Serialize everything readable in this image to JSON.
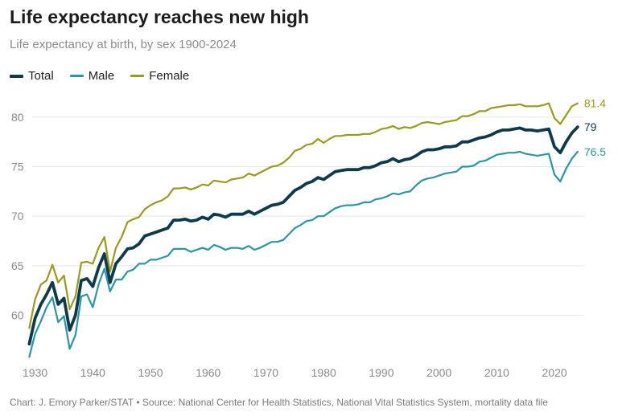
{
  "title": "Life expectancy reaches new high",
  "subtitle": "Life expectancy at birth, by sex 1900-2024",
  "source": "Chart: J. Emory Parker/STAT • Source: National Center for Health Statistics, National Vital Statistics System, mortality data file",
  "colors": {
    "total": "#0d3b4c",
    "male": "#2a97a8",
    "female": "#9a9a1c",
    "grid": "#e6e6e6",
    "tick": "#8a8a8a"
  },
  "chart_data": {
    "type": "line",
    "title": "Life expectancy reaches new high",
    "xlim": [
      1929.5,
      2025
    ],
    "ylim": [
      55.5,
      82.5
    ],
    "x_ticks": [
      1930,
      1940,
      1950,
      1960,
      1970,
      1980,
      1990,
      2000,
      2010,
      2020
    ],
    "y_ticks": [
      60,
      65,
      70,
      75,
      80
    ],
    "grid": "horizontal",
    "legend": "top-left",
    "x": [
      1929,
      1930,
      1931,
      1932,
      1933,
      1934,
      1935,
      1936,
      1937,
      1938,
      1939,
      1940,
      1941,
      1942,
      1943,
      1944,
      1945,
      1946,
      1947,
      1948,
      1949,
      1950,
      1951,
      1952,
      1953,
      1954,
      1955,
      1956,
      1957,
      1958,
      1959,
      1960,
      1961,
      1962,
      1963,
      1964,
      1965,
      1966,
      1967,
      1968,
      1969,
      1970,
      1971,
      1972,
      1973,
      1974,
      1975,
      1976,
      1977,
      1978,
      1979,
      1980,
      1981,
      1982,
      1983,
      1984,
      1985,
      1986,
      1987,
      1988,
      1989,
      1990,
      1991,
      1992,
      1993,
      1994,
      1995,
      1996,
      1997,
      1998,
      1999,
      2000,
      2001,
      2002,
      2003,
      2004,
      2005,
      2006,
      2007,
      2008,
      2009,
      2010,
      2011,
      2012,
      2013,
      2014,
      2015,
      2016,
      2017,
      2018,
      2019,
      2020,
      2021,
      2022,
      2023,
      2024
    ],
    "series": [
      {
        "name": "Total",
        "end_label": "79",
        "values": [
          57.1,
          59.7,
          61.1,
          62.1,
          63.3,
          61.1,
          61.7,
          58.5,
          60.0,
          63.5,
          63.7,
          62.9,
          64.8,
          66.2,
          63.3,
          65.2,
          65.9,
          66.7,
          66.8,
          67.2,
          68.0,
          68.2,
          68.4,
          68.6,
          68.8,
          69.6,
          69.6,
          69.7,
          69.5,
          69.6,
          69.9,
          69.7,
          70.2,
          70.1,
          69.9,
          70.2,
          70.2,
          70.2,
          70.5,
          70.2,
          70.5,
          70.8,
          71.1,
          71.2,
          71.4,
          72.0,
          72.6,
          72.9,
          73.3,
          73.5,
          73.9,
          73.7,
          74.1,
          74.5,
          74.6,
          74.7,
          74.7,
          74.7,
          74.9,
          74.9,
          75.1,
          75.4,
          75.5,
          75.8,
          75.5,
          75.7,
          75.8,
          76.1,
          76.5,
          76.7,
          76.7,
          76.8,
          77.0,
          77.0,
          77.1,
          77.5,
          77.5,
          77.7,
          77.9,
          78.0,
          78.2,
          78.5,
          78.7,
          78.7,
          78.8,
          78.9,
          78.7,
          78.7,
          78.6,
          78.7,
          78.8,
          77.0,
          76.4,
          77.5,
          78.4,
          79.0
        ]
      },
      {
        "name": "Male",
        "end_label": "76.5",
        "values": [
          55.8,
          58.1,
          59.4,
          60.8,
          61.8,
          59.3,
          59.9,
          56.6,
          58.0,
          61.9,
          62.1,
          60.8,
          63.1,
          64.7,
          62.4,
          63.6,
          63.6,
          64.4,
          64.6,
          65.2,
          65.2,
          65.6,
          65.6,
          65.8,
          66.0,
          66.7,
          66.7,
          66.7,
          66.4,
          66.6,
          66.8,
          66.6,
          67.1,
          66.9,
          66.6,
          66.8,
          66.8,
          66.7,
          67.0,
          66.6,
          66.8,
          67.1,
          67.4,
          67.4,
          67.6,
          68.2,
          68.8,
          69.1,
          69.5,
          69.6,
          70.0,
          70.0,
          70.4,
          70.8,
          71.0,
          71.1,
          71.1,
          71.2,
          71.4,
          71.4,
          71.7,
          71.8,
          72.0,
          72.3,
          72.2,
          72.4,
          72.5,
          73.1,
          73.6,
          73.8,
          73.9,
          74.1,
          74.3,
          74.4,
          74.5,
          75.0,
          75.0,
          75.1,
          75.5,
          75.6,
          75.9,
          76.2,
          76.3,
          76.4,
          76.4,
          76.5,
          76.3,
          76.2,
          76.1,
          76.2,
          76.3,
          74.2,
          73.5,
          74.8,
          75.8,
          76.5
        ]
      },
      {
        "name": "Female",
        "end_label": "81.4",
        "values": [
          58.7,
          61.6,
          63.1,
          63.5,
          65.1,
          63.3,
          64.0,
          60.6,
          61.9,
          65.3,
          65.4,
          65.2,
          66.8,
          67.9,
          64.4,
          66.8,
          67.9,
          69.4,
          69.7,
          69.9,
          70.7,
          71.1,
          71.4,
          71.6,
          72.0,
          72.8,
          72.8,
          72.9,
          72.7,
          72.9,
          73.2,
          73.1,
          73.6,
          73.5,
          73.4,
          73.7,
          73.8,
          73.9,
          74.3,
          74.1,
          74.4,
          74.7,
          75.0,
          75.1,
          75.4,
          75.9,
          76.6,
          76.8,
          77.2,
          77.3,
          77.8,
          77.4,
          77.8,
          78.1,
          78.1,
          78.2,
          78.2,
          78.2,
          78.3,
          78.3,
          78.5,
          78.8,
          78.9,
          79.1,
          78.8,
          79.0,
          78.9,
          79.1,
          79.4,
          79.5,
          79.4,
          79.3,
          79.5,
          79.6,
          79.7,
          80.1,
          80.1,
          80.3,
          80.6,
          80.6,
          80.9,
          81.0,
          81.1,
          81.2,
          81.2,
          81.3,
          81.1,
          81.1,
          81.1,
          81.2,
          81.4,
          79.9,
          79.3,
          80.2,
          81.1,
          81.4
        ]
      }
    ]
  }
}
